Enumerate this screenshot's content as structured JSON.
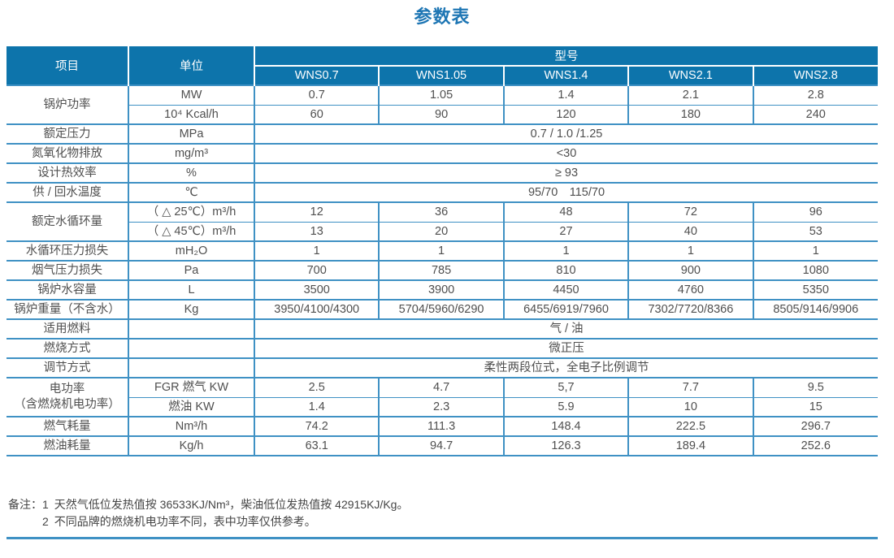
{
  "title": "参数表",
  "colors": {
    "header_bg": "#0d74ab",
    "grid_line": "#3f91c4",
    "title_text": "#1e76b4",
    "body_text": "#4f4f4f",
    "header_text": "#ffffff"
  },
  "table": {
    "header": {
      "item": "项目",
      "unit": "单位",
      "model_group": "型号",
      "models": [
        "WNS0.7",
        "WNS1.05",
        "WNS1.4",
        "WNS2.1",
        "WNS2.8"
      ]
    },
    "rows": [
      {
        "item": "锅炉功率",
        "subrows": [
          {
            "unit": "MW",
            "values": [
              "0.7",
              "1.05",
              "1.4",
              "2.1",
              "2.8"
            ]
          },
          {
            "unit": "10⁴ Kcal/h",
            "values": [
              "60",
              "90",
              "120",
              "180",
              "240"
            ]
          }
        ]
      },
      {
        "item": "额定压力",
        "subrows": [
          {
            "unit": "MPa",
            "span": "0.7 / 1.0 /1.25"
          }
        ]
      },
      {
        "item": "氮氧化物排放",
        "subrows": [
          {
            "unit": "mg/m³",
            "span": "<30"
          }
        ]
      },
      {
        "item": "设计热效率",
        "subrows": [
          {
            "unit": "%",
            "span": "≥ 93"
          }
        ]
      },
      {
        "item": "供 / 回水温度",
        "subrows": [
          {
            "unit": "℃",
            "span": "95/70　115/70"
          }
        ]
      },
      {
        "item": "额定水循环量",
        "subrows": [
          {
            "unit": "（ △ 25℃）m³/h",
            "values": [
              "12",
              "36",
              "48",
              "72",
              "96"
            ]
          },
          {
            "unit": "（ △ 45℃）m³/h",
            "values": [
              "13",
              "20",
              "27",
              "40",
              "53"
            ]
          }
        ]
      },
      {
        "item": "水循环压力损失",
        "subrows": [
          {
            "unit": "mH₂O",
            "values": [
              "1",
              "1",
              "1",
              "1",
              "1"
            ]
          }
        ]
      },
      {
        "item": "烟气压力损失",
        "subrows": [
          {
            "unit": "Pa",
            "values": [
              "700",
              "785",
              "810",
              "900",
              "1080"
            ]
          }
        ]
      },
      {
        "item": "锅炉水容量",
        "subrows": [
          {
            "unit": "L",
            "values": [
              "3500",
              "3900",
              "4450",
              "4760",
              "5350"
            ]
          }
        ]
      },
      {
        "item": "锅炉重量（不含水）",
        "subrows": [
          {
            "unit": "Kg",
            "values": [
              "3950/4100/4300",
              "5704/5960/6290",
              "6455/6919/7960",
              "7302/7720/8366",
              "8505/9146/9906"
            ]
          }
        ]
      },
      {
        "item": "适用燃料",
        "subrows": [
          {
            "unit": "",
            "span": "气 / 油"
          }
        ]
      },
      {
        "item": "燃烧方式",
        "subrows": [
          {
            "unit": "",
            "span": "微正压"
          }
        ]
      },
      {
        "item": "调节方式",
        "subrows": [
          {
            "unit": "",
            "span": "柔性两段位式，全电子比例调节"
          }
        ]
      },
      {
        "item": "电功率",
        "item_line2": "（含燃烧机电功率）",
        "subrows": [
          {
            "unit": "FGR 燃气 KW",
            "values": [
              "2.5",
              "4.7",
              "5,7",
              "7.7",
              "9.5"
            ]
          },
          {
            "unit": "燃油 KW",
            "values": [
              "1.4",
              "2.3",
              "5.9",
              "10",
              "15"
            ]
          }
        ]
      },
      {
        "item": "燃气耗量",
        "subrows": [
          {
            "unit": "Nm³/h",
            "values": [
              "74.2",
              "111.3",
              "148.4",
              "222.5",
              "296.7"
            ]
          }
        ]
      },
      {
        "item": "燃油耗量",
        "subrows": [
          {
            "unit": "Kg/h",
            "values": [
              "63.1",
              "94.7",
              "126.3",
              "189.4",
              "252.6"
            ]
          }
        ]
      }
    ]
  },
  "notes": {
    "label": "备注：",
    "items": [
      "1 天然气低位发热值按 36533KJ/Nm³，柴油低位发热值按 42915KJ/Kg。",
      "2 不同品牌的燃烧机电功率不同，表中功率仅供参考。"
    ]
  }
}
